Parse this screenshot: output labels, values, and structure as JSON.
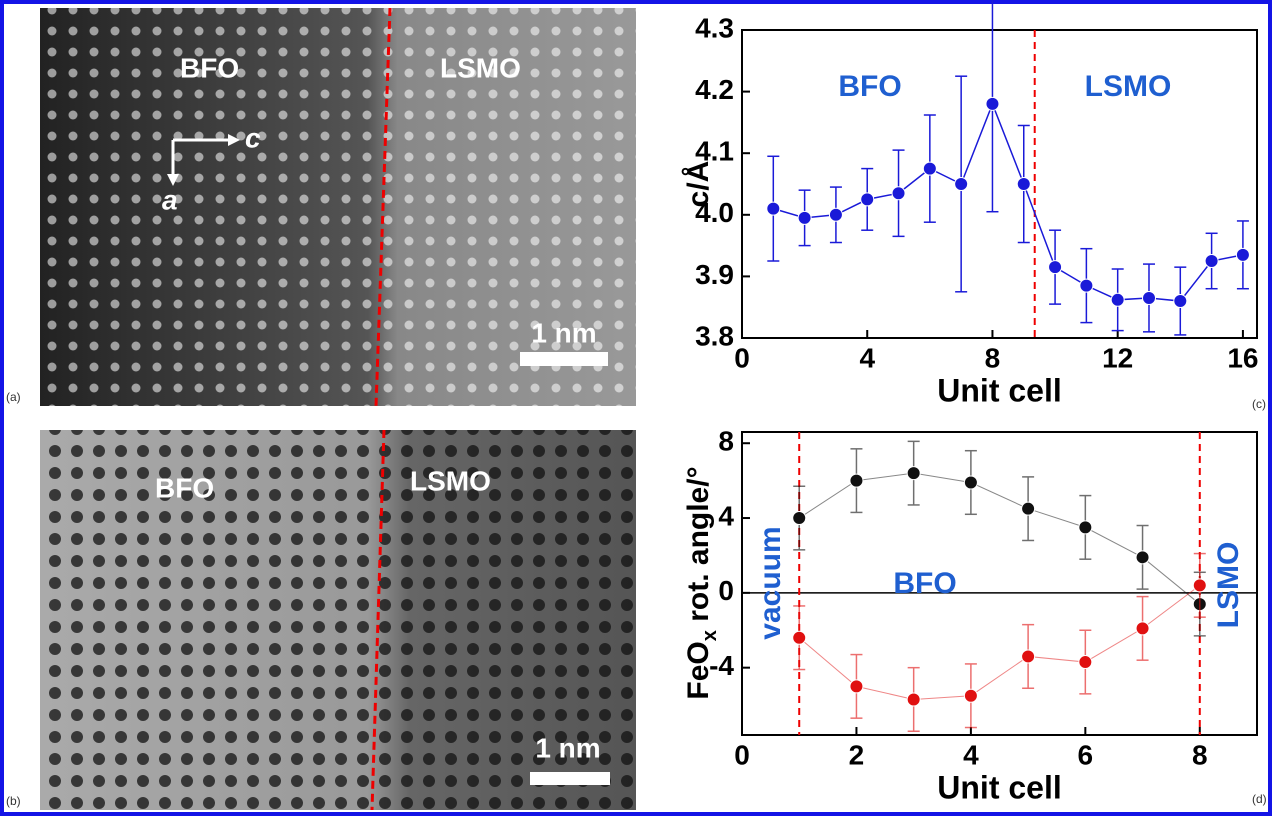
{
  "micrographs": [
    {
      "label": "(a)",
      "phases": [
        "BFO",
        "LSMO"
      ],
      "scale_bar": "1 nm",
      "axes": [
        "c",
        "a"
      ]
    },
    {
      "label": "(b)",
      "phases": [
        "BFO",
        "LSMO"
      ],
      "scale_bar": "1 nm"
    }
  ],
  "chart_data": [
    {
      "type": "line",
      "label": "(c)",
      "xlabel": "Unit cell",
      "ylabel": "c/Å",
      "annotations": [
        "BFO",
        "LSMO"
      ],
      "xlim": [
        0,
        16.45
      ],
      "xticks": [
        0,
        4,
        8,
        12,
        16
      ],
      "ylim": [
        3.8,
        4.3
      ],
      "yticks": [
        3.8,
        3.9,
        {
          "value": 4,
          "label": "4.0"
        },
        4.1,
        4.2,
        4.3
      ],
      "vlines": [
        9.35
      ],
      "zero_line": false,
      "x": [
        1,
        2,
        3,
        4,
        5,
        6,
        7,
        8,
        9,
        10,
        11,
        12,
        13,
        14,
        15,
        16
      ],
      "series": [
        {
          "color": "#1a1ad8",
          "values": [
            4.01,
            3.995,
            4.0,
            4.025,
            4.035,
            4.075,
            4.05,
            4.18,
            4.05,
            3.915,
            3.885,
            3.862,
            3.865,
            3.86,
            3.925,
            3.935
          ],
          "errors": [
            0.085,
            0.045,
            0.045,
            0.05,
            0.07,
            0.087,
            0.175,
            0.175,
            0.095,
            0.06,
            0.06,
            0.05,
            0.055,
            0.055,
            0.045,
            0.055
          ]
        }
      ]
    },
    {
      "type": "line",
      "label": "(d)",
      "xlabel": "Unit cell",
      "ylabel_parts": [
        "FeO",
        "x",
        " rot. angle/°"
      ],
      "annotations": [
        "vacuum",
        "BFO",
        "LSMO"
      ],
      "xlim": [
        0,
        9
      ],
      "xticks": [
        0,
        2,
        4,
        6,
        8
      ],
      "ylim": [
        -7.6,
        8.6
      ],
      "yticks": [
        -4,
        0,
        4,
        8
      ],
      "vlines": [
        1,
        8
      ],
      "zero_line": true,
      "x": [
        1,
        2,
        3,
        4,
        5,
        6,
        7,
        8
      ],
      "series": [
        {
          "color": "#111111",
          "values": [
            4.0,
            6.0,
            6.4,
            5.9,
            4.5,
            3.5,
            1.9,
            -0.6
          ],
          "errors": [
            1.7,
            1.7,
            1.7,
            1.7,
            1.7,
            1.7,
            1.7,
            1.7
          ]
        },
        {
          "color": "#e01010",
          "values": [
            -2.4,
            -5.0,
            -5.7,
            -5.5,
            -3.4,
            -3.7,
            -1.9,
            0.4
          ],
          "errors": [
            1.7,
            1.7,
            1.7,
            1.7,
            1.7,
            1.7,
            1.7,
            1.7
          ]
        }
      ]
    }
  ]
}
